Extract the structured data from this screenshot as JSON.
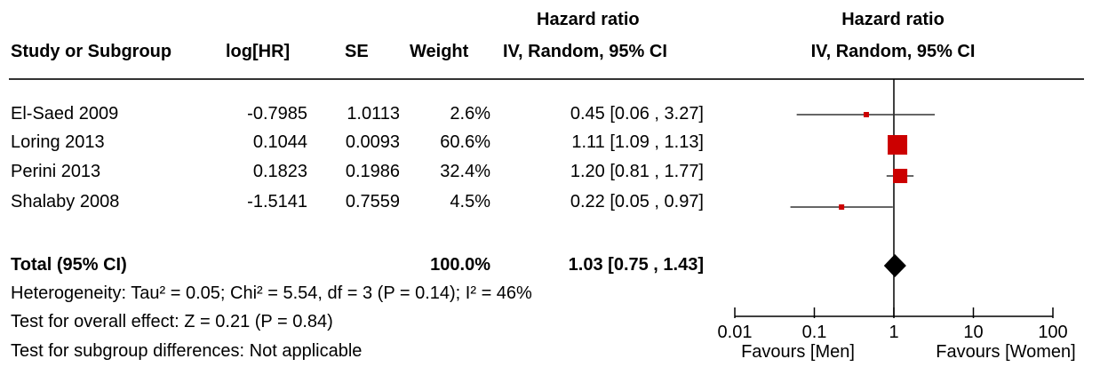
{
  "headers": {
    "study": "Study or Subgroup",
    "loghr": "log[HR]",
    "se": "SE",
    "weight": "Weight",
    "hr_title": "Hazard ratio",
    "hr_sub": "IV, Random, 95% CI",
    "plot_title": "Hazard ratio",
    "plot_sub": "IV, Random, 95% CI"
  },
  "studies": [
    {
      "name": "El-Saed 2009",
      "loghr": "-0.7985",
      "se": "1.0113",
      "weight": "2.6%",
      "ci_text": "0.45 [0.06 , 3.27]"
    },
    {
      "name": "Loring 2013",
      "loghr": "0.1044",
      "se": "0.0093",
      "weight": "60.6%",
      "ci_text": "1.11 [1.09 , 1.13]"
    },
    {
      "name": "Perini 2013",
      "loghr": "0.1823",
      "se": "0.1986",
      "weight": "32.4%",
      "ci_text": "1.20 [0.81 , 1.77]"
    },
    {
      "name": "Shalaby 2008",
      "loghr": "-1.5141",
      "se": "0.7559",
      "weight": "4.5%",
      "ci_text": "0.22 [0.05 , 0.97]"
    }
  ],
  "total": {
    "label": "Total (95% CI)",
    "weight": "100.0%",
    "ci_text": "1.03 [0.75 , 1.43]"
  },
  "notes": {
    "heterogeneity": "Heterogeneity: Tau² = 0.05; Chi² = 5.54, df = 3 (P = 0.14); I² = 46%",
    "overall": "Test for overall effect: Z = 0.21 (P = 0.84)",
    "subgroup": "Test for subgroup differences: Not applicable"
  },
  "axis": {
    "favours_left": "Favours [Men]",
    "favours_right": "Favours [Women]"
  },
  "chart_data": {
    "type": "scatter",
    "x_scale": "log",
    "xlim": [
      0.01,
      100
    ],
    "ticks": [
      {
        "value": 0.01,
        "label": "0.01"
      },
      {
        "value": 0.1,
        "label": "0.1"
      },
      {
        "value": 1,
        "label": "1"
      },
      {
        "value": 10,
        "label": "10"
      },
      {
        "value": 100,
        "label": "100"
      }
    ],
    "reference_line": 1,
    "marker_color": "#cc0000",
    "points": [
      {
        "name": "El-Saed 2009",
        "hr": 0.45,
        "lower": 0.06,
        "upper": 3.27,
        "weight": 2.6
      },
      {
        "name": "Loring 2013",
        "hr": 1.11,
        "lower": 1.09,
        "upper": 1.13,
        "weight": 60.6
      },
      {
        "name": "Perini 2013",
        "hr": 1.2,
        "lower": 0.81,
        "upper": 1.77,
        "weight": 32.4
      },
      {
        "name": "Shalaby 2008",
        "hr": 0.22,
        "lower": 0.05,
        "upper": 0.97,
        "weight": 4.5
      }
    ],
    "pooled": {
      "hr": 1.03,
      "lower": 0.75,
      "upper": 1.43
    }
  }
}
